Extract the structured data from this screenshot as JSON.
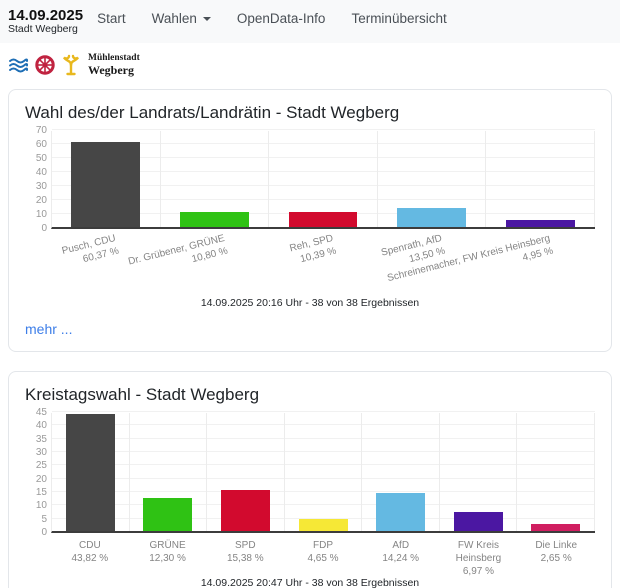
{
  "navbar": {
    "brand_date": "14.09.2025",
    "brand_sub": "Stadt Wegberg",
    "items": [
      {
        "label": "Start"
      },
      {
        "label": "Wahlen"
      },
      {
        "label": "OpenData-Info"
      },
      {
        "label": "Terminübersicht"
      }
    ]
  },
  "logo": {
    "line1": "Mühlenstadt",
    "line2": "Wegberg",
    "icon_names": [
      "waves-icon",
      "wheel-icon",
      "mill-icon"
    ],
    "colors": {
      "waves": "#1e6eb5",
      "wheel": "#c02340",
      "mill": "#e8b81e"
    }
  },
  "chart_data": [
    {
      "type": "bar",
      "title": "Wahl des/der Landrats/Landrätin - Stadt Wegberg",
      "ylim": [
        0,
        70
      ],
      "ytick_step": 10,
      "categories": [
        "Pusch, CDU",
        "Dr. Grübener, GRÜNE",
        "Reh, SPD",
        "Spenrath, AfD",
        "Schreinemacher, FW Kreis Heinsberg"
      ],
      "values": [
        60.37,
        10.8,
        10.39,
        13.5,
        4.95
      ],
      "value_labels": [
        "60,37 %",
        "10,80 %",
        "10,39 %",
        "13,50 %",
        "4,95 %"
      ],
      "colors": [
        "#464646",
        "#2fc214",
        "#d20a2e",
        "#64b9e2",
        "#4b17a2"
      ],
      "rotated_labels": true,
      "grid": true,
      "legend": "none",
      "caption": "14.09.2025 20:16 Uhr - 38 von 38 Ergebnissen",
      "more_link": "mehr ..."
    },
    {
      "type": "bar",
      "title": "Kreistagswahl - Stadt Wegberg",
      "ylim": [
        0,
        45
      ],
      "ytick_step": 5,
      "categories": [
        "CDU",
        "GRÜNE",
        "SPD",
        "FDP",
        "AfD",
        "FW Kreis Heinsberg",
        "Die Linke"
      ],
      "values": [
        43.82,
        12.3,
        15.38,
        4.65,
        14.24,
        6.97,
        2.65
      ],
      "value_labels": [
        "43,82 %",
        "12,30 %",
        "15,38 %",
        "4,65 %",
        "14,24 %",
        "6,97 %",
        "2,65 %"
      ],
      "colors": [
        "#464646",
        "#2fc214",
        "#d20a2e",
        "#f6e836",
        "#64b9e2",
        "#4b17a2",
        "#d01e60"
      ],
      "rotated_labels": false,
      "grid": true,
      "legend": "none",
      "caption": "14.09.2025 20:47 Uhr - 38 von 38 Ergebnissen"
    }
  ]
}
